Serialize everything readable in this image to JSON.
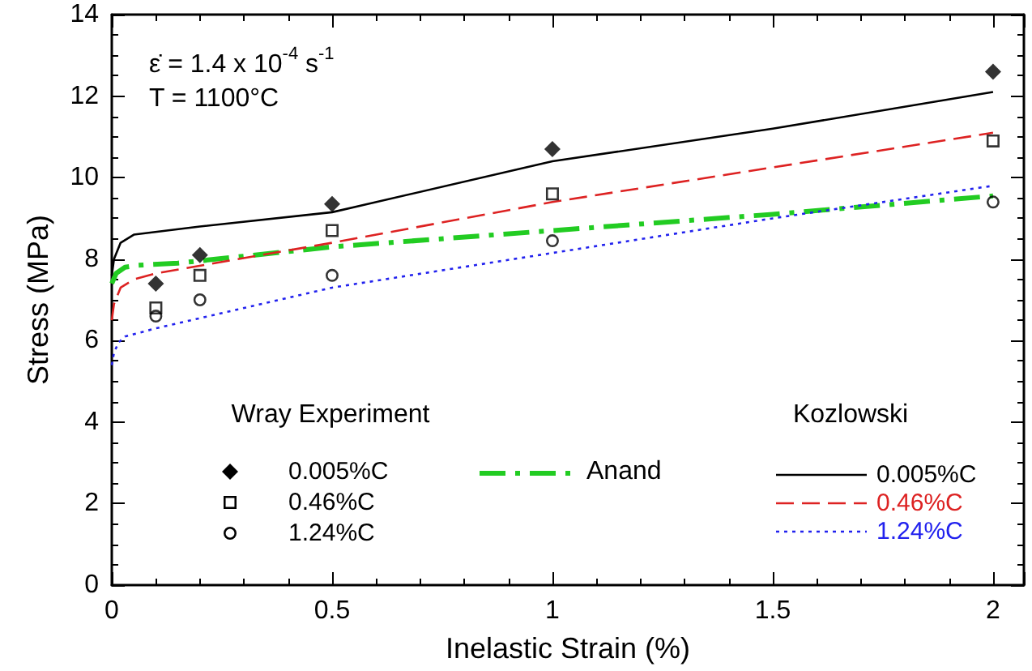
{
  "chart_data": {
    "type": "line",
    "xlabel": "Inelastic Strain (%)",
    "ylabel": "Stress (MPa)",
    "xlim": [
      0,
      2.07
    ],
    "xticks": [
      0,
      0.5,
      1,
      1.5,
      2
    ],
    "ylim": [
      0,
      14
    ],
    "yticks": [
      0,
      2,
      4,
      6,
      8,
      10,
      12,
      14
    ],
    "grid": false,
    "legend": "bottom",
    "annotations": [
      "ε̇ = 1.4 x 10$^{-4}$ s$^{-1}$",
      "T = 1100°C",
      "Wray Experiment",
      "Kozlowski"
    ],
    "series": [
      {
        "type": "scatter",
        "name": "0.005%C",
        "color": "#000000",
        "marker": "diamond",
        "x": [
          0.1,
          0.2,
          0.5,
          1,
          2
        ],
        "values": [
          7.4,
          8.1,
          9.35,
          10.7,
          12.6
        ]
      },
      {
        "type": "scatter",
        "name": "0.46%C",
        "color": "#000000",
        "marker": "square",
        "x": [
          0.1,
          0.2,
          0.5,
          1,
          2
        ],
        "values": [
          6.8,
          7.6,
          8.7,
          9.6,
          10.9
        ]
      },
      {
        "type": "scatter",
        "name": "1.24%C",
        "color": "#000000",
        "marker": "circle",
        "x": [
          0.1,
          0.2,
          0.5,
          1,
          2
        ],
        "values": [
          6.6,
          7.0,
          7.6,
          8.45,
          9.4
        ]
      },
      {
        "name": "Anand",
        "color": "#22cc22",
        "marker": "none",
        "line_style": "dashdot",
        "x": [
          0,
          0.01,
          0.03,
          0.06,
          0.15,
          0.5,
          1,
          1.5,
          2
        ],
        "values": [
          7.4,
          7.65,
          7.8,
          7.85,
          7.9,
          8.3,
          8.7,
          9.1,
          9.55
        ]
      },
      {
        "name": "0.005%C",
        "color": "#000000",
        "marker": "none",
        "line_style": "solid",
        "x": [
          0,
          0.005,
          0.02,
          0.05,
          0.2,
          0.5,
          1,
          1.5,
          2
        ],
        "values": [
          7.6,
          8.0,
          8.4,
          8.6,
          8.8,
          9.15,
          10.4,
          11.2,
          12.1
        ]
      },
      {
        "name": "0.46%C",
        "color": "#dd2222",
        "marker": "none",
        "line_style": "dashed",
        "x": [
          0,
          0.005,
          0.02,
          0.05,
          0.1,
          0.5,
          1,
          1.5,
          2
        ],
        "values": [
          6.5,
          6.9,
          7.3,
          7.5,
          7.65,
          8.4,
          9.4,
          10.25,
          11.1
        ]
      },
      {
        "name": "1.24%C",
        "color": "#2222ee",
        "marker": "none",
        "line_style": "dotted",
        "x": [
          0,
          0.005,
          0.015,
          0.03,
          0.1,
          0.5,
          1,
          1.5,
          2
        ],
        "values": [
          5.4,
          5.7,
          5.95,
          6.1,
          6.3,
          7.3,
          8.15,
          9.0,
          9.8
        ]
      }
    ]
  }
}
